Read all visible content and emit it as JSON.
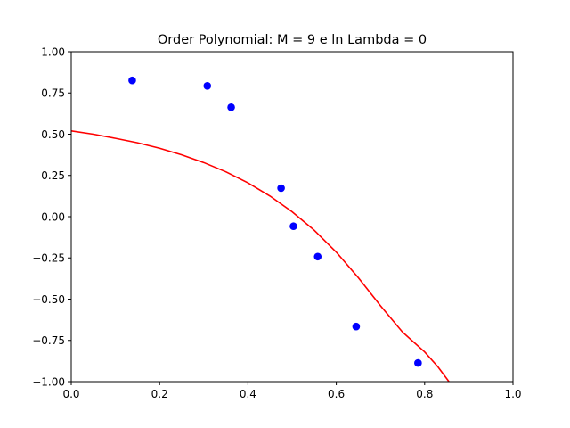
{
  "chart_data": {
    "type": "scatter",
    "title": "Order Polynomial: M = 9 e ln Lambda = 0",
    "xlabel": "",
    "ylabel": "",
    "xlim": [
      0.0,
      1.0
    ],
    "ylim": [
      -1.0,
      1.0
    ],
    "xticks": [
      0.0,
      0.2,
      0.4,
      0.6,
      0.8,
      1.0
    ],
    "xtick_labels": [
      "0.0",
      "0.2",
      "0.4",
      "0.6",
      "0.8",
      "1.0"
    ],
    "yticks": [
      1.0,
      0.75,
      0.5,
      0.25,
      0.0,
      -0.25,
      -0.5,
      -0.75,
      -1.0
    ],
    "ytick_labels": [
      "1.00",
      "0.75",
      "0.50",
      "0.25",
      "0.00",
      "−0.25",
      "−0.50",
      "−0.75",
      "−1.00"
    ],
    "grid": false,
    "series": [
      {
        "kind": "scatter",
        "color": "#0000ff",
        "points": [
          [
            0.138,
            0.826
          ],
          [
            0.308,
            0.793
          ],
          [
            0.362,
            0.663
          ],
          [
            0.475,
            0.173
          ],
          [
            0.503,
            -0.058
          ],
          [
            0.558,
            -0.242
          ],
          [
            0.645,
            -0.666
          ],
          [
            0.785,
            -0.887
          ]
        ]
      },
      {
        "kind": "line",
        "color": "#ff0000",
        "points": [
          [
            0.0,
            0.52
          ],
          [
            0.05,
            0.5
          ],
          [
            0.1,
            0.475
          ],
          [
            0.15,
            0.448
          ],
          [
            0.2,
            0.415
          ],
          [
            0.25,
            0.375
          ],
          [
            0.3,
            0.328
          ],
          [
            0.35,
            0.272
          ],
          [
            0.4,
            0.205
          ],
          [
            0.45,
            0.125
          ],
          [
            0.5,
            0.03
          ],
          [
            0.55,
            -0.082
          ],
          [
            0.6,
            -0.215
          ],
          [
            0.65,
            -0.37
          ],
          [
            0.7,
            -0.54
          ],
          [
            0.75,
            -0.7
          ],
          [
            0.8,
            -0.82
          ],
          [
            0.83,
            -0.91
          ],
          [
            0.855,
            -1.0
          ]
        ]
      }
    ]
  }
}
